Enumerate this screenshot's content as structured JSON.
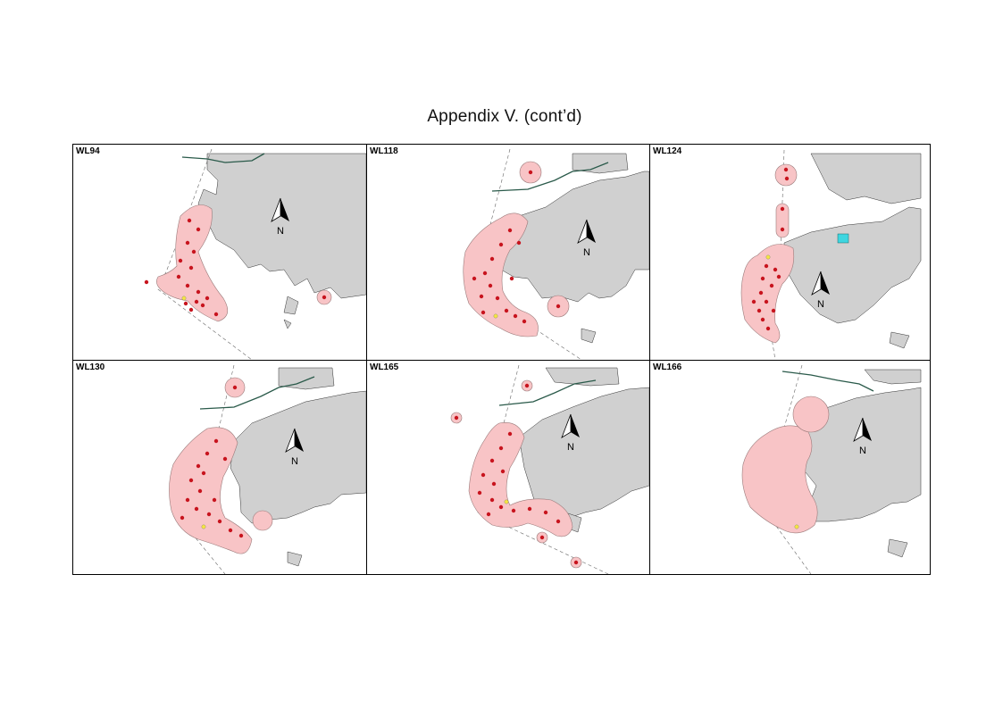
{
  "title": "Appendix V.  (cont’d)",
  "north_label": "N",
  "colors": {
    "land": "#d0d0d0",
    "home_range": "#f8c4c6",
    "home_range_outline": "#9a7a7a",
    "location_point": "#c8141e",
    "release_point": "#f4e542",
    "freshwater": "#3ed6e0",
    "road": "#2a5a4a"
  },
  "panels": [
    {
      "label": "WL94"
    },
    {
      "label": "WL118"
    },
    {
      "label": "WL124"
    },
    {
      "label": "WL130"
    },
    {
      "label": "WL165"
    },
    {
      "label": "WL166"
    }
  ]
}
